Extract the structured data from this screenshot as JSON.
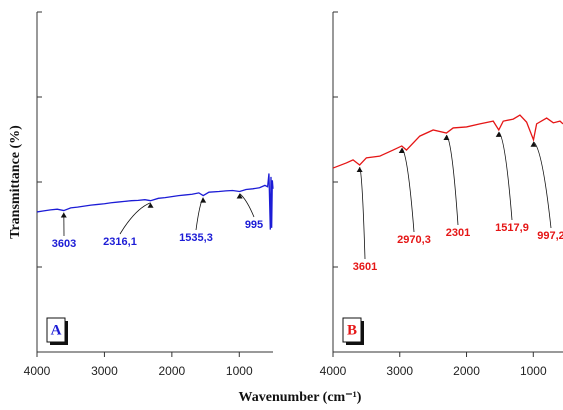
{
  "chart_data": [
    {
      "type": "line",
      "panel_label": "A",
      "ylabel": "Transmittance (%)",
      "xlabel": "Wavenumber (cm⁻¹)",
      "xlim": [
        4000,
        500
      ],
      "xticks": [
        4000,
        3000,
        2000,
        1000
      ],
      "ylim": [
        0,
        100
      ],
      "yticks": [
        0,
        25,
        50,
        75,
        100
      ],
      "series": [
        {
          "color": "#1c1cd6",
          "x": [
            4000,
            3900,
            3800,
            3700,
            3603,
            3500,
            3400,
            3300,
            3200,
            3100,
            3000,
            2900,
            2800,
            2700,
            2600,
            2500,
            2400,
            2316,
            2200,
            2100,
            2000,
            1900,
            1800,
            1700,
            1600,
            1535,
            1450,
            1300,
            1200,
            1100,
            995,
            900,
            800,
            700,
            620,
            580,
            560,
            540,
            530,
            520,
            510,
            500
          ],
          "values": [
            41.2,
            41.5,
            41.8,
            42.0,
            41.6,
            42.4,
            42.6,
            42.9,
            43.2,
            43.4,
            43.6,
            43.9,
            44.1,
            44.3,
            44.5,
            44.6,
            44.8,
            44.5,
            45.2,
            45.4,
            45.7,
            46.0,
            46.2,
            46.4,
            46.8,
            46.0,
            47.0,
            47.2,
            47.4,
            47.5,
            47.2,
            47.8,
            48.0,
            48.3,
            49.0,
            48.6,
            52.5,
            36.0,
            51.5,
            36.5,
            50.5,
            48.0
          ]
        }
      ],
      "annotations": [
        {
          "label": "3603",
          "x": 3603
        },
        {
          "label": "2316,1",
          "x": 2316.1
        },
        {
          "label": "1535,3",
          "x": 1535.3
        },
        {
          "label": "995",
          "x": 995
        }
      ]
    },
    {
      "type": "line",
      "panel_label": "B",
      "xlim": [
        4000,
        555
      ],
      "xticks": [
        4000,
        3000,
        2000,
        1000
      ],
      "ylim": [
        0,
        100
      ],
      "yticks": [
        0,
        25,
        50,
        75,
        100
      ],
      "series": [
        {
          "color": "#e51616",
          "x": [
            4000,
            3800,
            3700,
            3601,
            3500,
            3300,
            3100,
            2970,
            2900,
            2700,
            2500,
            2301,
            2200,
            2000,
            1800,
            1600,
            1517,
            1450,
            1300,
            1200,
            1100,
            997,
            950,
            800,
            700,
            600,
            555
          ],
          "values": [
            54.1,
            55.6,
            56.5,
            55.0,
            57.1,
            57.6,
            59.4,
            60.6,
            59.4,
            63.5,
            65.3,
            64.4,
            65.9,
            66.2,
            67.1,
            67.9,
            65.3,
            67.9,
            68.5,
            69.7,
            67.6,
            62.4,
            67.1,
            68.8,
            67.4,
            67.9,
            67.1
          ]
        }
      ],
      "annotations": [
        {
          "label": "3601",
          "x": 3601
        },
        {
          "label": "2970,3",
          "x": 2970.3
        },
        {
          "label": "2301",
          "x": 2301
        },
        {
          "label": "1517,9",
          "x": 1517.9
        },
        {
          "label": "997,2",
          "x": 997.2
        }
      ]
    }
  ]
}
